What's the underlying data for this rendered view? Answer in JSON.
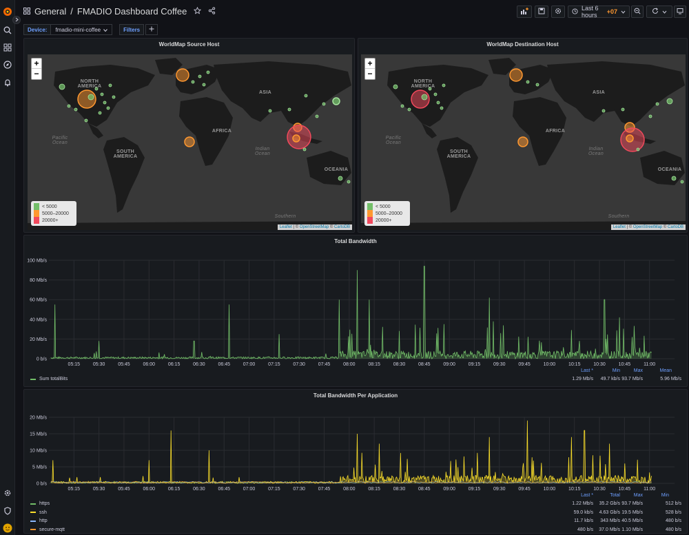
{
  "header": {
    "breadcrumb_folder": "General",
    "breadcrumb_sep": "/",
    "dashboard_title": "FMADIO Dashboard Coffee",
    "time_range": "Last 6 hours",
    "timezone": "+07"
  },
  "variables": {
    "device_label": "Device:",
    "device_value": "fmadio-mini-coffee",
    "filters_label": "Filters"
  },
  "map_legend": [
    {
      "label": "< 5000",
      "color": "#73bf69"
    },
    {
      "label": "5000–20000",
      "color": "#ff9830"
    },
    {
      "label": "20000+",
      "color": "#f2495c"
    }
  ],
  "map_attribution": {
    "leaflet": "Leaflet",
    "sep": "| ©",
    "osm": "OpenStreetMap",
    "amp": "©",
    "carto": "CartoDB"
  },
  "map_labels": {
    "north_america": "NORTH AMERICA",
    "asia": "ASIA",
    "africa": "AFRICA",
    "south_america": "SOUTH AMERICA",
    "oceania": "OCEANIA",
    "pacific": "Pacific Ocean",
    "indian": "Indian Ocean",
    "southern": "Southern"
  },
  "panels": {
    "map_source_title": "WorldMap Source Host",
    "map_dest_title": "WorldMap Destination Host",
    "bandwidth_title": "Total Bandwidth",
    "per_app_title": "Total Bandwidth Per Application"
  },
  "bandwidth_stats": {
    "headers": [
      "Last *",
      "Min",
      "Max",
      "Mean"
    ],
    "series": [
      {
        "name": "Sum totalBits",
        "color": "#73bf69",
        "values": [
          "1.29 Mb/s",
          "49.7 kb/s",
          "93.7 Mb/s",
          "5.96 Mb/s"
        ]
      }
    ]
  },
  "per_app_stats": {
    "headers": [
      "Last *",
      "Total",
      "Max",
      "Min"
    ],
    "series": [
      {
        "name": "https",
        "color": "#73bf69",
        "values": [
          "1.22 Mb/s",
          "35.2 Gb/s",
          "93.7 Mb/s",
          "512 b/s"
        ]
      },
      {
        "name": "ssh",
        "color": "#fade2a",
        "values": [
          "59.0 kb/s",
          "4.63 Gb/s",
          "19.5 Mb/s",
          "528 b/s"
        ]
      },
      {
        "name": "http",
        "color": "#8ab8ff",
        "values": [
          "11.7 kb/s",
          "343 Mb/s",
          "40.5 Mb/s",
          "480 b/s"
        ]
      },
      {
        "name": "secure-mqtt",
        "color": "#ff9830",
        "values": [
          "480 b/s",
          "37.0 Mb/s",
          "1.10 Mb/s",
          "480 b/s"
        ]
      }
    ]
  },
  "chart_data": [
    {
      "type": "line",
      "title": "Total Bandwidth",
      "x": [
        "05:15",
        "05:30",
        "05:45",
        "06:00",
        "06:15",
        "06:30",
        "06:45",
        "07:00",
        "07:15",
        "07:30",
        "07:45",
        "08:00",
        "08:15",
        "08:30",
        "08:45",
        "09:00",
        "09:15",
        "09:30",
        "09:45",
        "10:00",
        "10:15",
        "10:30",
        "10:45",
        "11:00"
      ],
      "y_ticks": [
        "0 b/s",
        "20 Mb/s",
        "40 Mb/s",
        "60 Mb/s",
        "80 Mb/s",
        "100 Mb/s"
      ],
      "ylim": [
        0,
        100
      ],
      "series": [
        {
          "name": "Sum totalBits",
          "color": "#73bf69"
        }
      ],
      "peaks": [
        {
          "t": 5.06,
          "v": 55
        },
        {
          "t": 5.5,
          "v": 18
        },
        {
          "t": 6.45,
          "v": 18
        },
        {
          "t": 6.8,
          "v": 55
        },
        {
          "t": 7.3,
          "v": 25
        },
        {
          "t": 7.9,
          "v": 60
        },
        {
          "t": 8.08,
          "v": 90
        },
        {
          "t": 8.2,
          "v": 60
        },
        {
          "t": 8.75,
          "v": 94
        },
        {
          "t": 9.4,
          "v": 62
        },
        {
          "t": 10.55,
          "v": 60
        },
        {
          "t": 10.7,
          "v": 42
        }
      ]
    },
    {
      "type": "line",
      "title": "Total Bandwidth Per Application",
      "x": [
        "05:15",
        "05:30",
        "05:45",
        "06:00",
        "06:15",
        "06:30",
        "06:45",
        "07:00",
        "07:15",
        "07:30",
        "07:45",
        "08:00",
        "08:15",
        "08:30",
        "08:45",
        "09:00",
        "09:15",
        "09:30",
        "09:45",
        "10:00",
        "10:15",
        "10:30",
        "10:45",
        "11:00"
      ],
      "y_ticks": [
        "0 b/s",
        "5 Mb/s",
        "10 Mb/s",
        "15 Mb/s",
        "20 Mb/s"
      ],
      "ylim": [
        0,
        20
      ],
      "series": [
        {
          "name": "https",
          "color": "#73bf69"
        },
        {
          "name": "ssh",
          "color": "#fade2a"
        },
        {
          "name": "http",
          "color": "#8ab8ff"
        },
        {
          "name": "secure-mqtt",
          "color": "#ff9830"
        }
      ],
      "peaks": [
        {
          "t": 5.04,
          "v": 7
        },
        {
          "t": 6.0,
          "v": 7
        },
        {
          "t": 6.22,
          "v": 16
        },
        {
          "t": 6.6,
          "v": 10
        },
        {
          "t": 8.08,
          "v": 15
        },
        {
          "t": 8.3,
          "v": 12
        },
        {
          "t": 9.4,
          "v": 14
        },
        {
          "t": 9.78,
          "v": 19
        },
        {
          "t": 10.22,
          "v": 14
        },
        {
          "t": 10.35,
          "v": 16
        },
        {
          "t": 10.6,
          "v": 12
        }
      ]
    }
  ]
}
